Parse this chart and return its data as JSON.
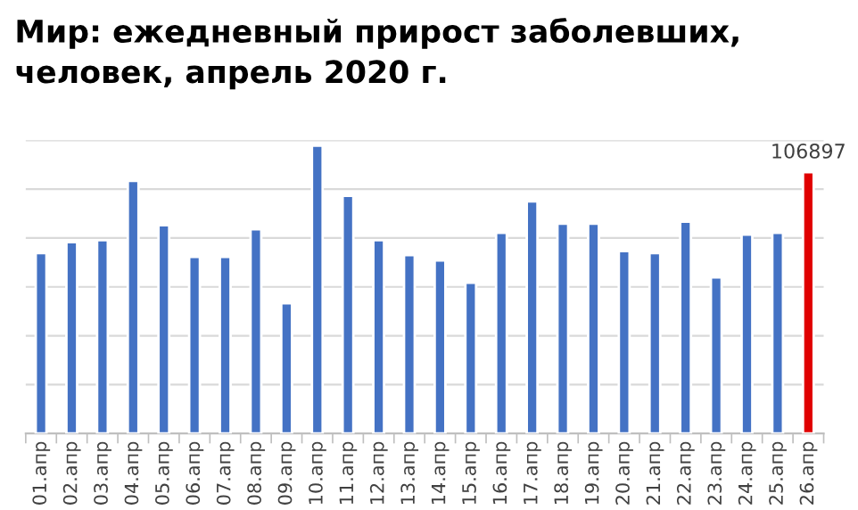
{
  "chart_data": {
    "type": "bar",
    "title": "Мир: ежедневный прирост заболевших,\nчеловек, апрель 2020 г.",
    "grid": "y",
    "ylim": [
      0,
      120000
    ],
    "yticks": [
      {
        "value": 0,
        "label": null
      },
      {
        "value": 20000,
        "label": null
      },
      {
        "value": 40000,
        "label": null
      },
      {
        "value": 60000,
        "label": null
      },
      {
        "value": 80000,
        "label": null
      },
      {
        "value": 100000,
        "label": null
      },
      {
        "value": 120000,
        "label": null
      }
    ],
    "tick_labels": "x",
    "categories": [
      "01.апр",
      "02.апр",
      "03.апр",
      "04.апр",
      "05.апр",
      "06.апр",
      "07.апр",
      "08.апр",
      "09.апр",
      "10.апр",
      "11.апр",
      "12.апр",
      "13.апр",
      "14.апр",
      "15.апр",
      "16.апр",
      "17.апр",
      "18.апр",
      "19.апр",
      "20.апр",
      "21.апр",
      "22.апр",
      "23.апр",
      "24.апр",
      "25.апр",
      "26.апр"
    ],
    "values": [
      73800,
      78300,
      79100,
      103400,
      85200,
      72300,
      72300,
      83600,
      53300,
      117800,
      97300,
      79100,
      73000,
      70800,
      61700,
      82100,
      95000,
      85900,
      85900,
      74600,
      73800,
      86700,
      63900,
      81400,
      82100,
      106897
    ],
    "colors": [
      "#4472c4",
      "#4472c4",
      "#4472c4",
      "#4472c4",
      "#4472c4",
      "#4472c4",
      "#4472c4",
      "#4472c4",
      "#4472c4",
      "#4472c4",
      "#4472c4",
      "#4472c4",
      "#4472c4",
      "#4472c4",
      "#4472c4",
      "#4472c4",
      "#4472c4",
      "#4472c4",
      "#4472c4",
      "#4472c4",
      "#4472c4",
      "#4472c4",
      "#4472c4",
      "#4472c4",
      "#4472c4",
      "#e00000"
    ],
    "value_labels": [
      null,
      null,
      null,
      null,
      null,
      null,
      null,
      null,
      null,
      null,
      null,
      null,
      null,
      null,
      null,
      null,
      null,
      null,
      null,
      null,
      null,
      null,
      null,
      null,
      null,
      "106897"
    ]
  }
}
